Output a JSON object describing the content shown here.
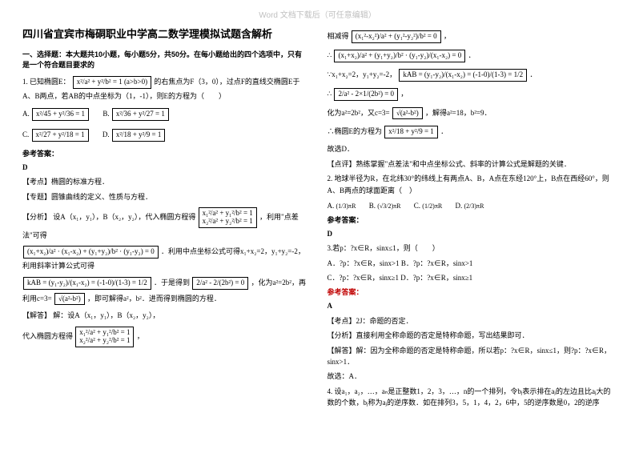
{
  "watermark": "Word 文档下载后（可任意编辑）",
  "title": "四川省宜宾市梅硐职业中学高二数学理模拟试题含解析",
  "section1_head": "一、选择题：本大题共10小题，每小题5分，共50分。在每小题给出的四个选项中，只有是一个符合题目要求的",
  "q1": {
    "stem_pre": "1. 已知椭圆E：",
    "eq1": "x²/a² + y²/b² = 1 (a>b>0)",
    "stem_mid": "的右焦点为F（3，0），过点F的直线交椭圆E于A、B两点，若AB的中点坐标为（1，-1），则E的方程为（　　）",
    "optA_l": "A.",
    "optA": "x²/45 + y²/36 = 1",
    "optB_l": "B.",
    "optB": "x²/36 + y²/27 = 1",
    "optC_l": "C.",
    "optC": "x²/27 + y²/18 = 1",
    "optD_l": "D.",
    "optD": "x²/18 + y²/9 = 1",
    "ans_label": "参考答案：",
    "ans": "D",
    "kaodian_l": "【考点】",
    "kaodian": "椭圆的标准方程．",
    "zhuanti_l": "【专题】",
    "zhuanti": "圆锥曲线的定义、性质与方程．",
    "fenxi_l": "【分析】",
    "fenxi_a": "设A（x₁，y₁），B（x₂，y₂），代入椭圆方程得",
    "fenxi_eq1": "x₁²/a² + y₁²/b² = 1",
    "fenxi_eq1b": "x₂²/a² + y₂²/b² = 1",
    "fenxi_b": "，利用\"点差法\"可得",
    "diff_eq": "(x₁+x₂)/a² · (x₁-x₂) + (y₁+y₂)/b² · (y₁-y₂) = 0",
    "fenxi_c": "．利用中点坐标公式可得x₁+x₂=2，y₁+y₂=-2，利用斜率计算公式可得",
    "k_eq_a": "kAB = (y₁-y₂)/(x₁-x₂) = (-1-0)/(1-3) = 1/2",
    "fenxi_d": "．于是得到",
    "reduce_eq": "2/a² - 2/(2b²) = 0",
    "fenxi_e": "，化为a²=2b²，再利用c=3=",
    "sqrt_eq": "√(a²-b²)",
    "fenxi_f": "，即可解得a²，b²．进而得到椭圆的方程．",
    "jieda_l": "【解答】",
    "jieda_a": "解：设A（x₁，y₁），B（x₂，y₂），",
    "jieda_b": "代入椭圆方程得",
    "jieda_eq1": "x₁²/a² + y₁²/b² = 1",
    "jieda_eq1b": "x₂²/a² + y₂²/b² = 1"
  },
  "col2": {
    "l1": "相减得",
    "eq_sub": "(x₁²-x₂²)/a² + (y₁²-y₂²)/b² = 0",
    "l2": "∴",
    "eq_factor": "(x₁+x₂)/a² + (y₁+y₂)/b² · (y₁-y₂)/(x₁-x₂) = 0",
    "l3": "∵x₁+x₂=2，y₁+y₂=-2，",
    "k_eq": "kAB = (y₁-y₂)/(x₁-x₂) = (-1-0)/(1-3) = 1/2",
    "l4": "∴",
    "eq_reduce": "2/a² - 2×1/(2b²) = 0",
    "l5": "化为a²=2b²，又c=3=",
    "sqrt": "√(a²-b²)",
    "l5b": "，解得a²=18，b²=9．",
    "l6": "∴椭圆E的方程为",
    "final_eq": "x²/18 + y²/9 = 1",
    "l7": "故选D．",
    "dianping_l": "【点评】",
    "dianping": "熟练掌握\"点差法\"和中点坐标公式、斜率的计算公式是解题的关键．"
  },
  "q2": {
    "stem": "2. 地球半径为R，在北纬30°的纬线上有两点A、B，A点在东经120°上，B点在西经60°，则A、B两点的球面距离（　）",
    "optA_l": "A.",
    "optA": "(1/3)πR",
    "optB_l": "B.",
    "optB": "(√3/2)πR",
    "optC_l": "C.",
    "optC": "(1/2)πR",
    "optD_l": "D.",
    "optD": "(2/3)πR",
    "ans_label": "参考答案：",
    "ans": "D"
  },
  "q3": {
    "stem": "3.若p：?x∈R，sinx≤1，则（　　）",
    "optA": "A．?p：?x∈R，sinx>1",
    "optB": "B．?p：?x∈R，sinx>1",
    "optC": "C．?p：?x∈R，sinx≥1",
    "optD": "D．?p：?x∈R，sinx≥1",
    "ans_label": "参考答案：",
    "ans": "A",
    "kaodian_l": "【考点】",
    "kaodian": "2J：命题的否定．",
    "fenxi_l": "【分析】",
    "fenxi": "直接利用全称命题的否定是特称命题，写出结果即可．",
    "jieda_l": "【解答】",
    "jieda": "解：因为全称命题的否定是特称命题，所以若p：?x∈R，sinx≤1，则?p：?x∈R，sinx>1．",
    "l_end": "故选：A．"
  },
  "q4": {
    "stem": "4. 设a₁，a₂，…，aₙ是正整数1，2，3，…，n的一个排列，令bⱼ表示排在aⱼ的左边且比aⱼ大的数的个数，bⱼ称为aⱼ的逆序数．如在排列3，5，1，4，2，6中，5的逆序数是0，2的逆序"
  }
}
